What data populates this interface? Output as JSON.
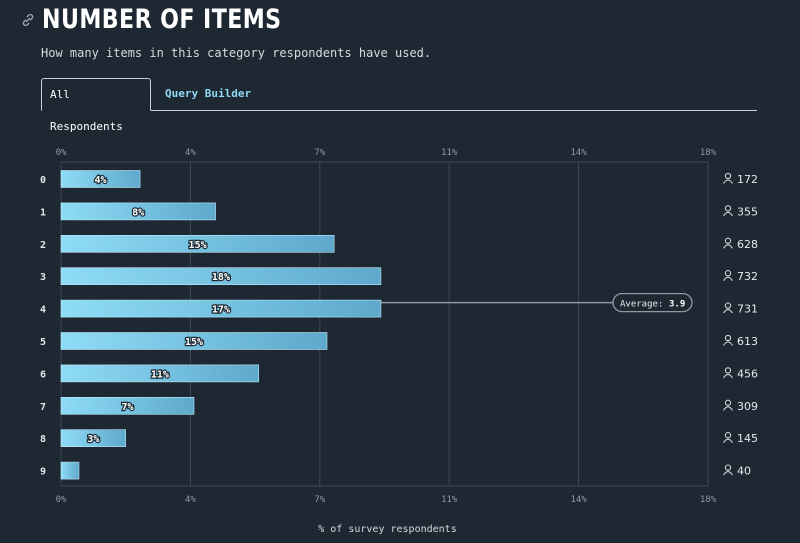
{
  "header": {
    "title": "NUMBER OF ITEMS",
    "subtitle": "How many items in this category respondents have used.",
    "link_icon": "link-icon"
  },
  "tabs": [
    {
      "label": "All Respondents",
      "active": true
    },
    {
      "label": "Query Builder",
      "active": false
    }
  ],
  "colors": {
    "bar_start": "#8fdcf7",
    "bar_end": "#5ea9cc",
    "grid": "#3b4954",
    "text_muted": "#8d99a3",
    "accent": "#8fd6f3"
  },
  "chart_data": {
    "type": "bar",
    "orientation": "horizontal",
    "categories": [
      "0",
      "1",
      "2",
      "3",
      "4",
      "5",
      "6",
      "7",
      "8",
      "9"
    ],
    "values": [
      2.2,
      4.3,
      7.6,
      8.9,
      8.9,
      7.4,
      5.5,
      3.7,
      1.8,
      0.5
    ],
    "value_labels": [
      "4%",
      "8%",
      "15%",
      "18%",
      "17%",
      "15%",
      "11%",
      "7%",
      "3%",
      ""
    ],
    "respondent_counts": [
      "172",
      "355",
      "628",
      "732",
      "731",
      "613",
      "456",
      "309",
      "145",
      "40"
    ],
    "xlim": [
      0,
      18
    ],
    "xticks": [
      "0%",
      "4%",
      "7%",
      "11%",
      "14%",
      "18%"
    ],
    "xlabel": "% of survey respondents",
    "average": {
      "label": "Average:",
      "value": "3.9",
      "category_index": 4
    },
    "grid": true
  }
}
